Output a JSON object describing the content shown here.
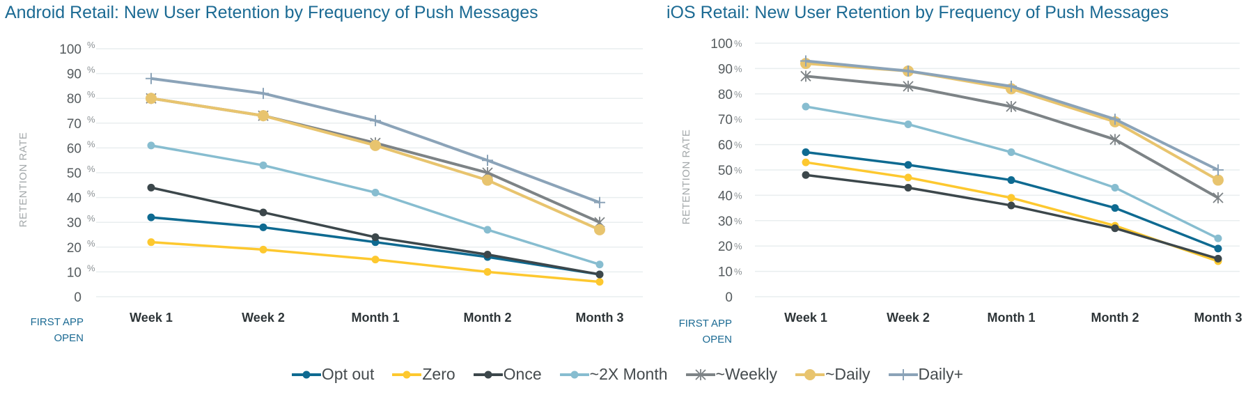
{
  "chart_data": [
    {
      "type": "line",
      "title": "Android Retail: New User Retention by Frequency of Push Messages",
      "xlabel": "FIRST APP OPEN",
      "ylabel": "RETENTION RATE",
      "ylim": [
        0,
        100
      ],
      "yticks": [
        "0",
        "10",
        "20",
        "30",
        "40",
        "50",
        "60",
        "70",
        "80",
        "90",
        "100"
      ],
      "ytick_suffix": "%",
      "grid": true,
      "categories": [
        "Week 1",
        "Week 2",
        "Month 1",
        "Month 2",
        "Month 3"
      ],
      "series": [
        {
          "name": "Opt out",
          "values": [
            32,
            28,
            22,
            16,
            9
          ]
        },
        {
          "name": "Zero",
          "values": [
            22,
            19,
            15,
            10,
            6
          ]
        },
        {
          "name": "Once",
          "values": [
            44,
            34,
            24,
            17,
            9
          ]
        },
        {
          "name": "~2X Month",
          "values": [
            61,
            53,
            42,
            27,
            13
          ]
        },
        {
          "name": "~Weekly",
          "values": [
            80,
            73,
            62,
            50,
            30
          ]
        },
        {
          "name": "~Daily",
          "values": [
            80,
            73,
            61,
            47,
            27
          ]
        },
        {
          "name": "Daily+",
          "values": [
            88,
            82,
            71,
            55,
            38
          ]
        }
      ]
    },
    {
      "type": "line",
      "title": "iOS Retail: New User Retention by Frequency of Push Messages",
      "xlabel": "FIRST APP OPEN",
      "ylabel": "RETENTION RATE",
      "ylim": [
        0,
        100
      ],
      "yticks": [
        "0",
        "10",
        "20",
        "30",
        "40",
        "50",
        "60",
        "70",
        "80",
        "90",
        "100"
      ],
      "ytick_suffix": "%",
      "grid": true,
      "categories": [
        "Week 1",
        "Week 2",
        "Month 1",
        "Month 2",
        "Month 3"
      ],
      "series": [
        {
          "name": "Opt out",
          "values": [
            57,
            52,
            46,
            35,
            19
          ]
        },
        {
          "name": "Zero",
          "values": [
            53,
            47,
            39,
            28,
            14
          ]
        },
        {
          "name": "Once",
          "values": [
            48,
            43,
            36,
            27,
            15
          ]
        },
        {
          "name": "~2X Month",
          "values": [
            75,
            68,
            57,
            43,
            23
          ]
        },
        {
          "name": "~Weekly",
          "values": [
            87,
            83,
            75,
            62,
            39
          ]
        },
        {
          "name": "~Daily",
          "values": [
            92,
            89,
            82,
            69,
            46
          ]
        },
        {
          "name": "Daily+",
          "values": [
            93,
            89,
            83,
            70,
            50
          ]
        }
      ]
    }
  ],
  "legend": {
    "placement": "bottom-center",
    "items": [
      {
        "name": "Opt out",
        "color": "#0e6a91",
        "marker": "dot"
      },
      {
        "name": "Zero",
        "color": "#fdc82f",
        "marker": "dot"
      },
      {
        "name": "Once",
        "color": "#3c474b",
        "marker": "dot"
      },
      {
        "name": "~2X Month",
        "color": "#87bdd0",
        "marker": "dot"
      },
      {
        "name": "~Weekly",
        "color": "#7d8386",
        "marker": "asterisk"
      },
      {
        "name": "~Daily",
        "color": "#e8c46e",
        "marker": "big-dot"
      },
      {
        "name": "Daily+",
        "color": "#8ba3b8",
        "marker": "plus"
      }
    ]
  }
}
